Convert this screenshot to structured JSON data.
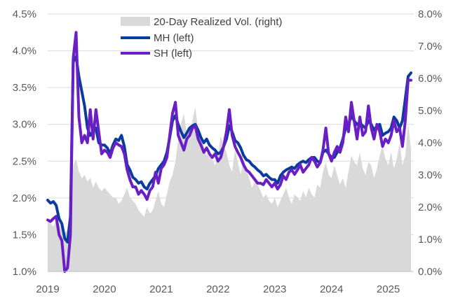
{
  "chart_data": {
    "type": "line",
    "title": "",
    "xlabel": "",
    "x_ticks": [
      "2019",
      "2020",
      "2021",
      "2022",
      "2023",
      "2024",
      "2025"
    ],
    "x_range": [
      2019.0,
      2025.45
    ],
    "y_left": {
      "ylim": [
        1.0,
        4.5
      ],
      "step": 0.5,
      "ticks": [
        "1.0%",
        "1.5%",
        "2.0%",
        "2.5%",
        "3.0%",
        "3.5%",
        "4.0%",
        "4.5%"
      ]
    },
    "y_right": {
      "ylim": [
        0.0,
        8.0
      ],
      "step": 1.0,
      "ticks": [
        "0.0%",
        "1.0%",
        "2.0%",
        "3.0%",
        "4.0%",
        "5.0%",
        "6.0%",
        "7.0%",
        "8.0%"
      ]
    },
    "legend": [
      "20-Day Realized Vol. (right)",
      "MH (left)",
      "SH (left)"
    ],
    "colors": {
      "vol": "#d9d9d9",
      "mh": "#0b3b9e",
      "sh": "#6a1fc6",
      "grid": "#d9d9d9",
      "axis": "#bfbfbf"
    },
    "series": [
      {
        "name": "20-Day Realized Vol. (right)",
        "axis": "right",
        "kind": "area",
        "x": [
          2019.0,
          2019.05,
          2019.1,
          2019.15,
          2019.2,
          2019.25,
          2019.3,
          2019.35,
          2019.4,
          2019.45,
          2019.5,
          2019.55,
          2019.6,
          2019.65,
          2019.7,
          2019.75,
          2019.8,
          2019.85,
          2019.9,
          2019.95,
          2020.0,
          2020.05,
          2020.1,
          2020.15,
          2020.2,
          2020.25,
          2020.3,
          2020.35,
          2020.4,
          2020.45,
          2020.5,
          2020.55,
          2020.6,
          2020.65,
          2020.7,
          2020.75,
          2020.8,
          2020.85,
          2020.9,
          2020.95,
          2021.0,
          2021.05,
          2021.1,
          2021.15,
          2021.2,
          2021.25,
          2021.3,
          2021.35,
          2021.4,
          2021.45,
          2021.5,
          2021.55,
          2021.6,
          2021.65,
          2021.7,
          2021.75,
          2021.8,
          2021.85,
          2021.9,
          2021.95,
          2022.0,
          2022.05,
          2022.1,
          2022.15,
          2022.2,
          2022.25,
          2022.3,
          2022.35,
          2022.4,
          2022.45,
          2022.5,
          2022.55,
          2022.6,
          2022.65,
          2022.7,
          2022.75,
          2022.8,
          2022.85,
          2022.9,
          2022.95,
          2023.0,
          2023.05,
          2023.1,
          2023.15,
          2023.2,
          2023.25,
          2023.3,
          2023.35,
          2023.4,
          2023.45,
          2023.5,
          2023.55,
          2023.6,
          2023.65,
          2023.7,
          2023.75,
          2023.8,
          2023.85,
          2023.9,
          2023.95,
          2024.0,
          2024.05,
          2024.1,
          2024.15,
          2024.2,
          2024.25,
          2024.3,
          2024.35,
          2024.4,
          2024.45,
          2024.5,
          2024.55,
          2024.6,
          2024.65,
          2024.7,
          2024.75,
          2024.8,
          2024.85,
          2024.9,
          2024.95,
          2025.0,
          2025.05,
          2025.1,
          2025.15,
          2025.2,
          2025.25,
          2025.3,
          2025.35,
          2025.4
        ],
        "values": [
          1.6,
          1.5,
          1.4,
          1.6,
          1.5,
          1.3,
          1.2,
          1.3,
          1.8,
          3.3,
          3.5,
          3.1,
          2.9,
          3.0,
          2.8,
          2.9,
          2.6,
          2.8,
          2.6,
          2.5,
          2.6,
          2.5,
          2.4,
          2.3,
          2.3,
          2.1,
          2.2,
          2.4,
          2.6,
          2.3,
          2.2,
          2.1,
          1.9,
          1.8,
          1.7,
          2.0,
          1.8,
          1.9,
          2.2,
          2.5,
          2.1,
          2.0,
          2.4,
          2.8,
          3.0,
          3.4,
          4.1,
          4.6,
          4.9,
          4.3,
          4.1,
          4.7,
          5.1,
          4.4,
          4.2,
          3.9,
          3.6,
          3.8,
          3.5,
          3.3,
          3.6,
          4.2,
          3.9,
          3.7,
          3.3,
          3.1,
          3.8,
          3.4,
          3.0,
          3.5,
          3.2,
          2.9,
          2.6,
          2.8,
          2.7,
          2.5,
          2.3,
          2.4,
          2.2,
          2.1,
          2.3,
          2.0,
          2.2,
          2.4,
          2.6,
          2.3,
          2.1,
          2.4,
          2.3,
          2.2,
          2.5,
          2.3,
          2.6,
          2.4,
          2.3,
          2.7,
          2.6,
          3.1,
          3.4,
          3.0,
          2.9,
          3.3,
          3.0,
          2.7,
          2.9,
          2.6,
          3.1,
          3.6,
          3.4,
          3.3,
          3.7,
          3.2,
          3.0,
          3.4,
          3.3,
          2.9,
          3.2,
          3.6,
          3.9,
          3.5,
          3.3,
          3.7,
          3.2,
          3.5,
          4.0,
          3.3,
          3.6,
          4.6,
          3.8
        ]
      },
      {
        "name": "MH (left)",
        "axis": "left",
        "kind": "line",
        "x": [
          2019.0,
          2019.05,
          2019.1,
          2019.15,
          2019.2,
          2019.25,
          2019.3,
          2019.35,
          2019.4,
          2019.45,
          2019.5,
          2019.55,
          2019.6,
          2019.65,
          2019.7,
          2019.75,
          2019.8,
          2019.85,
          2019.9,
          2019.95,
          2020.0,
          2020.05,
          2020.1,
          2020.15,
          2020.2,
          2020.25,
          2020.3,
          2020.35,
          2020.4,
          2020.45,
          2020.5,
          2020.55,
          2020.6,
          2020.65,
          2020.7,
          2020.75,
          2020.8,
          2020.85,
          2020.9,
          2020.95,
          2021.0,
          2021.05,
          2021.1,
          2021.15,
          2021.2,
          2021.25,
          2021.3,
          2021.35,
          2021.4,
          2021.45,
          2021.5,
          2021.55,
          2021.6,
          2021.65,
          2021.7,
          2021.75,
          2021.8,
          2021.85,
          2021.9,
          2021.95,
          2022.0,
          2022.05,
          2022.1,
          2022.15,
          2022.2,
          2022.25,
          2022.3,
          2022.35,
          2022.4,
          2022.45,
          2022.5,
          2022.55,
          2022.6,
          2022.65,
          2022.7,
          2022.75,
          2022.8,
          2022.85,
          2022.9,
          2022.95,
          2023.0,
          2023.05,
          2023.1,
          2023.15,
          2023.2,
          2023.25,
          2023.3,
          2023.35,
          2023.4,
          2023.45,
          2023.5,
          2023.55,
          2023.6,
          2023.65,
          2023.7,
          2023.75,
          2023.8,
          2023.85,
          2023.9,
          2023.95,
          2024.0,
          2024.05,
          2024.1,
          2024.15,
          2024.2,
          2024.25,
          2024.3,
          2024.35,
          2024.4,
          2024.45,
          2024.5,
          2024.55,
          2024.6,
          2024.65,
          2024.7,
          2024.75,
          2024.8,
          2024.85,
          2024.9,
          2024.95,
          2025.0,
          2025.05,
          2025.1,
          2025.15,
          2025.2,
          2025.25,
          2025.3,
          2025.35,
          2025.4
        ],
        "values": [
          1.97,
          1.93,
          1.95,
          1.9,
          1.72,
          1.65,
          1.45,
          1.4,
          1.75,
          3.85,
          3.92,
          3.65,
          3.45,
          3.25,
          2.95,
          2.85,
          2.9,
          2.95,
          2.75,
          2.72,
          2.72,
          2.68,
          2.6,
          2.72,
          2.8,
          2.78,
          2.85,
          2.7,
          2.45,
          2.38,
          2.28,
          2.25,
          2.2,
          2.22,
          2.15,
          2.12,
          2.2,
          2.25,
          2.3,
          2.4,
          2.45,
          2.5,
          2.62,
          2.82,
          3.05,
          3.12,
          3.0,
          2.9,
          2.82,
          2.88,
          2.95,
          2.98,
          3.0,
          2.92,
          2.82,
          2.75,
          2.8,
          2.72,
          2.68,
          2.65,
          2.6,
          2.62,
          2.7,
          2.8,
          2.98,
          2.9,
          2.78,
          2.75,
          2.68,
          2.58,
          2.52,
          2.5,
          2.45,
          2.42,
          2.38,
          2.35,
          2.3,
          2.32,
          2.28,
          2.25,
          2.25,
          2.2,
          2.3,
          2.35,
          2.38,
          2.4,
          2.42,
          2.4,
          2.45,
          2.48,
          2.5,
          2.48,
          2.52,
          2.55,
          2.55,
          2.5,
          2.48,
          2.62,
          2.65,
          2.6,
          2.55,
          2.55,
          2.62,
          2.68,
          2.8,
          2.95,
          3.0,
          3.12,
          3.05,
          3.0,
          3.02,
          2.98,
          2.95,
          3.05,
          3.0,
          2.92,
          2.98,
          3.0,
          2.85,
          2.88,
          2.9,
          2.95,
          3.1,
          3.05,
          2.95,
          3.05,
          3.35,
          3.65,
          3.7
        ]
      },
      {
        "name": "SH (left)",
        "axis": "left",
        "kind": "line",
        "x": [
          2019.0,
          2019.05,
          2019.1,
          2019.15,
          2019.2,
          2019.25,
          2019.3,
          2019.35,
          2019.4,
          2019.45,
          2019.5,
          2019.55,
          2019.6,
          2019.65,
          2019.7,
          2019.75,
          2019.8,
          2019.85,
          2019.9,
          2019.95,
          2020.0,
          2020.05,
          2020.1,
          2020.15,
          2020.2,
          2020.25,
          2020.3,
          2020.35,
          2020.4,
          2020.45,
          2020.5,
          2020.55,
          2020.6,
          2020.65,
          2020.7,
          2020.75,
          2020.8,
          2020.85,
          2020.9,
          2020.95,
          2021.0,
          2021.05,
          2021.1,
          2021.15,
          2021.2,
          2021.25,
          2021.3,
          2021.35,
          2021.4,
          2021.45,
          2021.5,
          2021.55,
          2021.6,
          2021.65,
          2021.7,
          2021.75,
          2021.8,
          2021.85,
          2021.9,
          2021.95,
          2022.0,
          2022.05,
          2022.1,
          2022.15,
          2022.2,
          2022.25,
          2022.3,
          2022.35,
          2022.4,
          2022.45,
          2022.5,
          2022.55,
          2022.6,
          2022.65,
          2022.7,
          2022.75,
          2022.8,
          2022.85,
          2022.9,
          2022.95,
          2023.0,
          2023.05,
          2023.1,
          2023.15,
          2023.2,
          2023.25,
          2023.3,
          2023.35,
          2023.4,
          2023.45,
          2023.5,
          2023.55,
          2023.6,
          2023.65,
          2023.7,
          2023.75,
          2023.8,
          2023.85,
          2023.9,
          2023.95,
          2024.0,
          2024.05,
          2024.1,
          2024.15,
          2024.2,
          2024.25,
          2024.3,
          2024.35,
          2024.4,
          2024.45,
          2024.5,
          2024.55,
          2024.6,
          2024.65,
          2024.7,
          2024.75,
          2024.8,
          2024.85,
          2024.9,
          2024.95,
          2025.0,
          2025.05,
          2025.1,
          2025.15,
          2025.2,
          2025.25,
          2025.3,
          2025.35,
          2025.4
        ],
        "values": [
          1.7,
          1.68,
          1.72,
          1.75,
          1.5,
          1.42,
          1.0,
          1.05,
          1.5,
          3.9,
          4.25,
          3.1,
          2.75,
          2.85,
          2.75,
          3.2,
          2.8,
          3.2,
          2.9,
          2.6,
          2.65,
          2.62,
          2.55,
          2.68,
          2.75,
          2.72,
          2.7,
          2.6,
          2.38,
          2.25,
          2.15,
          2.15,
          2.05,
          2.1,
          2.05,
          1.98,
          2.1,
          2.15,
          2.35,
          2.2,
          2.4,
          2.45,
          2.55,
          2.85,
          3.15,
          3.3,
          2.85,
          2.75,
          2.65,
          2.8,
          2.85,
          2.95,
          2.98,
          2.8,
          2.72,
          2.62,
          2.68,
          2.6,
          2.55,
          2.6,
          2.5,
          2.55,
          2.7,
          2.9,
          3.2,
          2.85,
          2.7,
          2.62,
          2.55,
          2.45,
          2.38,
          2.35,
          2.3,
          2.25,
          2.2,
          2.2,
          2.18,
          2.25,
          2.2,
          2.15,
          2.2,
          2.12,
          2.18,
          2.3,
          2.25,
          2.35,
          2.38,
          2.32,
          2.38,
          2.45,
          2.35,
          2.4,
          2.45,
          2.55,
          2.5,
          2.42,
          2.48,
          2.65,
          2.95,
          2.6,
          2.5,
          2.62,
          2.7,
          2.62,
          2.75,
          3.1,
          2.9,
          3.3,
          3.05,
          2.8,
          3.1,
          2.85,
          2.9,
          3.25,
          2.95,
          2.8,
          3.0,
          2.9,
          2.7,
          2.8,
          2.75,
          2.85,
          3.05,
          2.9,
          2.95,
          2.7,
          3.05,
          3.6,
          3.6
        ]
      }
    ]
  }
}
